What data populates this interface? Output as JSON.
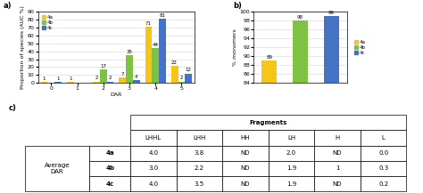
{
  "chart_data": [
    {
      "type": "bar",
      "panel_label": "a)",
      "xlabel": "DAR",
      "ylabel": "Proportion of species (AUC %)",
      "categories": [
        "0",
        "1",
        "2",
        "3",
        "4",
        "5"
      ],
      "series": [
        {
          "name": "4a",
          "color": "#F5C518",
          "values": [
            1,
            1,
            2,
            7,
            71,
            22
          ],
          "value_labels": [
            "1",
            "1",
            "2",
            "7",
            "71",
            "22"
          ]
        },
        {
          "name": "4b",
          "color": "#7DC243",
          "values": [
            0,
            0,
            17,
            35,
            44,
            2
          ],
          "value_labels": [
            null,
            null,
            "17",
            "35",
            "44",
            "2"
          ]
        },
        {
          "name": "4c",
          "color": "#4472C4",
          "values": [
            1,
            0,
            2,
            4,
            81,
            12
          ],
          "value_labels": [
            "1",
            null,
            "2",
            "4",
            "81",
            "12"
          ]
        }
      ],
      "ylim": [
        0,
        90
      ],
      "yticks": [
        0,
        10,
        20,
        30,
        40,
        50,
        60,
        70,
        80,
        90
      ],
      "grid": true,
      "legend": "upper left",
      "data_labels": true
    },
    {
      "type": "bar",
      "panel_label": "b)",
      "ylabel": "% monomers",
      "categories": [
        null,
        null,
        null
      ],
      "series": [
        {
          "name": "4a",
          "color": "#F5C518",
          "values": [
            89,
            null,
            null
          ]
        },
        {
          "name": "4b",
          "color": "#7DC243",
          "values": [
            null,
            98,
            null
          ]
        },
        {
          "name": "4c",
          "color": "#4472C4",
          "values": [
            null,
            null,
            99
          ]
        }
      ],
      "stacked": true,
      "ylim": [
        84,
        100
      ],
      "yticks": [
        84,
        86,
        88,
        90,
        92,
        94,
        96,
        98,
        100
      ],
      "grid": true,
      "legend": "right",
      "data_labels": true,
      "tick_labels": "y"
    },
    {
      "type": "table",
      "panel_label": "c)",
      "title": "Fragments",
      "columns": [
        "LHHL",
        "LHH",
        "HH",
        "LH",
        "H",
        "L"
      ],
      "rows": [
        "4a",
        "4b",
        "4c"
      ],
      "row_label": "Average\nDAR",
      "cells": [
        [
          "4.0",
          "3.8",
          "ND",
          "2.0",
          "ND",
          "0.0"
        ],
        [
          "3.0",
          "2.2",
          "ND",
          "1.9",
          "1",
          "0.3"
        ],
        [
          "4.0",
          "3.5",
          "ND",
          "1.9",
          "ND",
          "0.2"
        ]
      ]
    }
  ]
}
